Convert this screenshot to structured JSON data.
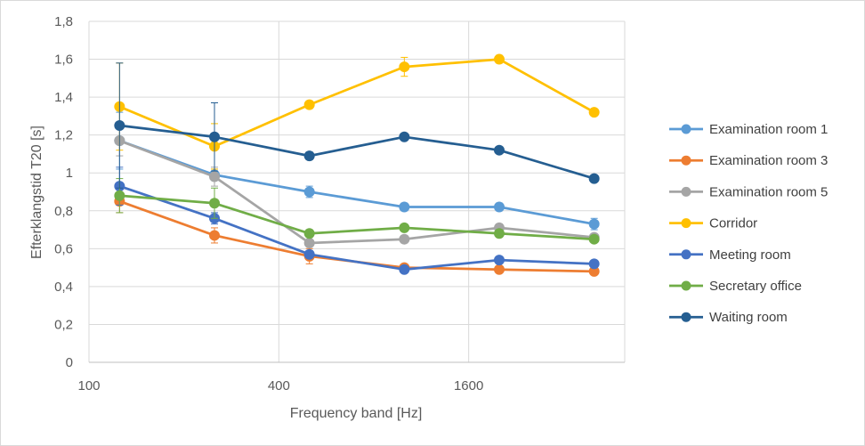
{
  "chart_data": {
    "type": "line",
    "xlabel": "Frequency band [Hz]",
    "ylabel": "Efterklangstid T20 [s]",
    "x": [
      125,
      250,
      500,
      1000,
      2000,
      4000
    ],
    "x_scale": "log2",
    "xlim": [
      100,
      5000
    ],
    "xticks": [
      100,
      400,
      1600
    ],
    "xtick_labels": [
      "100",
      "400",
      "1600"
    ],
    "ylim": [
      0,
      1.8
    ],
    "yticks": [
      0,
      0.2,
      0.4,
      0.6,
      0.8,
      1,
      1.2,
      1.4,
      1.6,
      1.8
    ],
    "ytick_labels": [
      "0",
      "0,2",
      "0,4",
      "0,6",
      "0,8",
      "1",
      "1,2",
      "1,4",
      "1,6",
      "1,8"
    ],
    "grid": true,
    "legend_position": "right",
    "series": [
      {
        "name": "Examination room 1",
        "color": "#5B9BD5",
        "values": [
          1.17,
          0.99,
          0.9,
          0.82,
          0.82,
          0.73
        ],
        "errors": [
          0.15,
          0.03,
          0.03,
          0.02,
          0.02,
          0.03
        ]
      },
      {
        "name": "Examination room 3",
        "color": "#ED7D31",
        "values": [
          0.85,
          0.67,
          0.56,
          0.5,
          0.49,
          0.48
        ],
        "errors": [
          0.06,
          0.04,
          0.04,
          0.01,
          0.01,
          0.01
        ]
      },
      {
        "name": "Examination room 5",
        "color": "#A5A5A5",
        "values": [
          1.17,
          0.98,
          0.63,
          0.65,
          0.71,
          0.66
        ],
        "errors": [
          0.08,
          0.05,
          0.01,
          0.02,
          0.02,
          0.01
        ]
      },
      {
        "name": "Corridor",
        "color": "#FFC000",
        "values": [
          1.35,
          1.14,
          1.36,
          1.56,
          1.6,
          1.32
        ],
        "errors": [
          0.23,
          0.12,
          0.02,
          0.05,
          0.02,
          0.01
        ]
      },
      {
        "name": "Meeting room",
        "color": "#4472C4",
        "values": [
          0.93,
          0.76,
          0.57,
          0.49,
          0.54,
          0.52
        ],
        "errors": [
          0.1,
          0.03,
          0.02,
          0.01,
          0.01,
          0.01
        ]
      },
      {
        "name": "Secretary office",
        "color": "#70AD47",
        "values": [
          0.88,
          0.84,
          0.68,
          0.71,
          0.68,
          0.65
        ],
        "errors": [
          0.09,
          0.08,
          0.02,
          0.01,
          0.02,
          0.01
        ]
      },
      {
        "name": "Waiting room",
        "color": "#255E91",
        "values": [
          1.25,
          1.19,
          1.09,
          1.19,
          1.12,
          0.97
        ],
        "errors": [
          0.33,
          0.18,
          0.02,
          0.01,
          0.01,
          0.01
        ]
      }
    ]
  }
}
